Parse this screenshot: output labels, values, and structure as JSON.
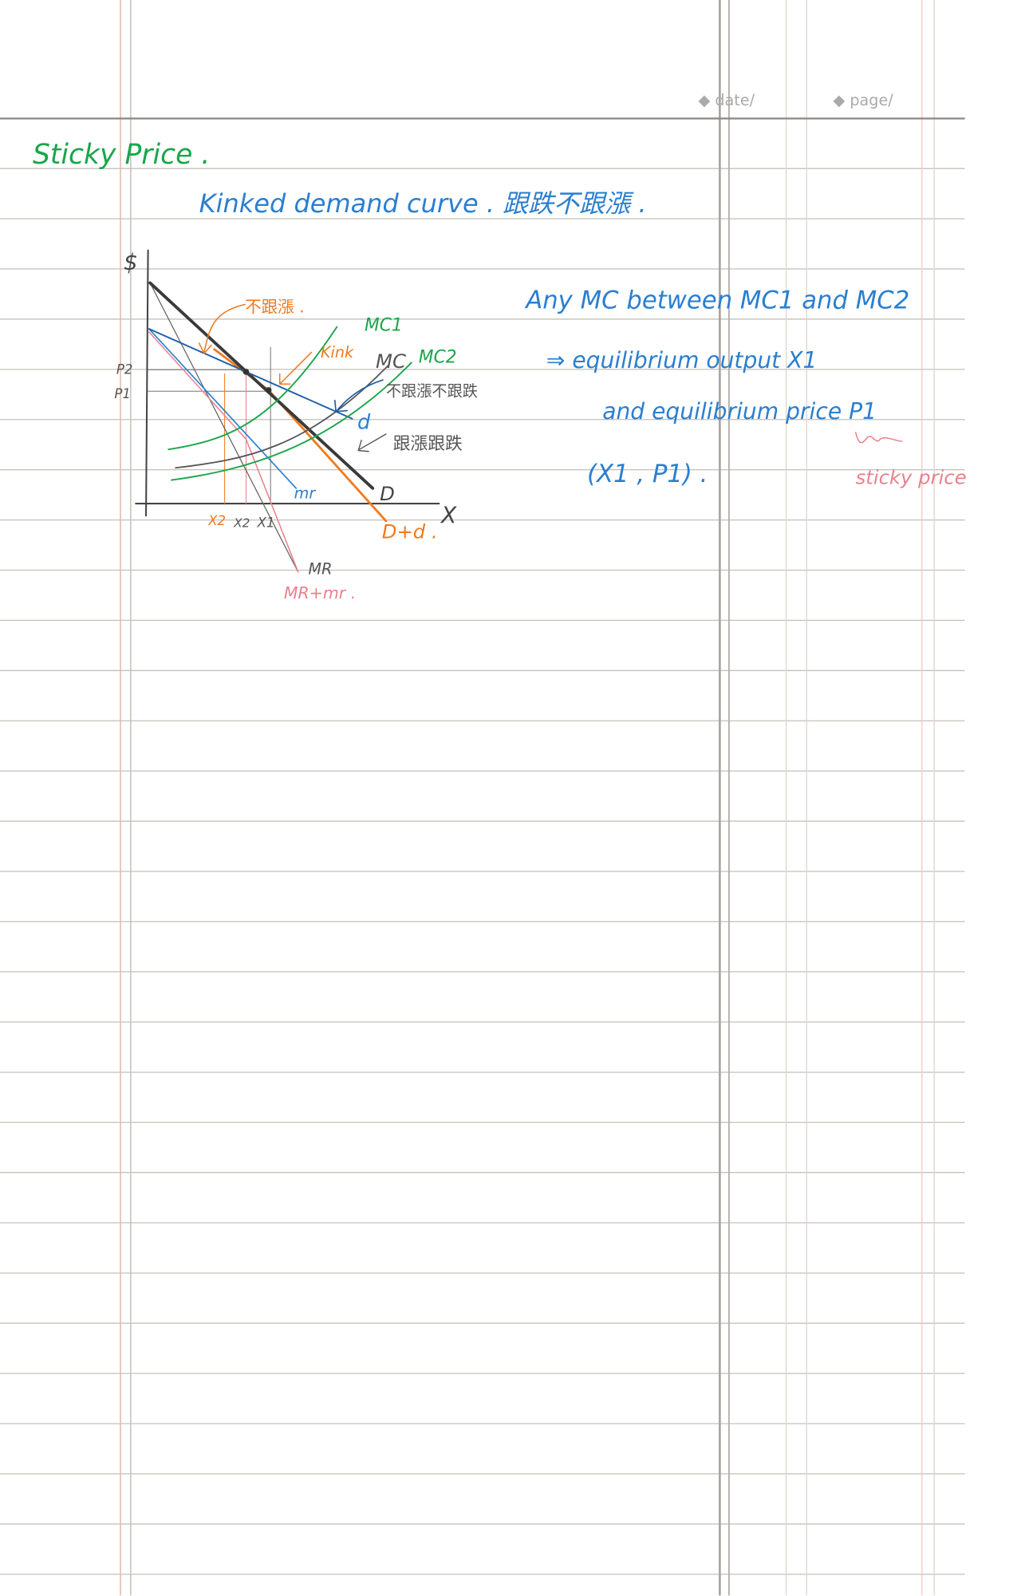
{
  "header": {
    "date_label": "◆ date/",
    "page_label": "◆ page/"
  },
  "title": "Sticky Price .",
  "subtitle": "Kinked demand curve . 跟跌不跟漲 .",
  "diagram": {
    "y_axis_label": "$",
    "x_axis_label": "X",
    "p2": "P2",
    "p1": "P1",
    "x2_orange": "X2",
    "x2": "X2",
    "x1": "X1",
    "D": "D",
    "D_plus_d": "D+d .",
    "d": "d",
    "mr": "mr",
    "MR": "MR",
    "MR_plus_mr": "MR+mr .",
    "MC1": "MC1",
    "MC": "MC",
    "MC2": "MC2",
    "kink": "Kink",
    "no_follow_rise": "不跟漲 .",
    "no_follow_both": "不跟漲不跟跌",
    "follow_both": "跟漲跟跌",
    "colors": {
      "green": "#1aa64a",
      "orange": "#f07a1c",
      "blue": "#2a7fd0",
      "pink": "#e8828c",
      "gray": "#555555",
      "dark": "#333333"
    }
  },
  "notes": {
    "line1": "Any MC between MC1 and MC2",
    "line2": "⇒ equilibrium output X1",
    "line3": "and equilibrium price P1",
    "line4": "(X1 , P1) .",
    "side": "sticky price"
  }
}
